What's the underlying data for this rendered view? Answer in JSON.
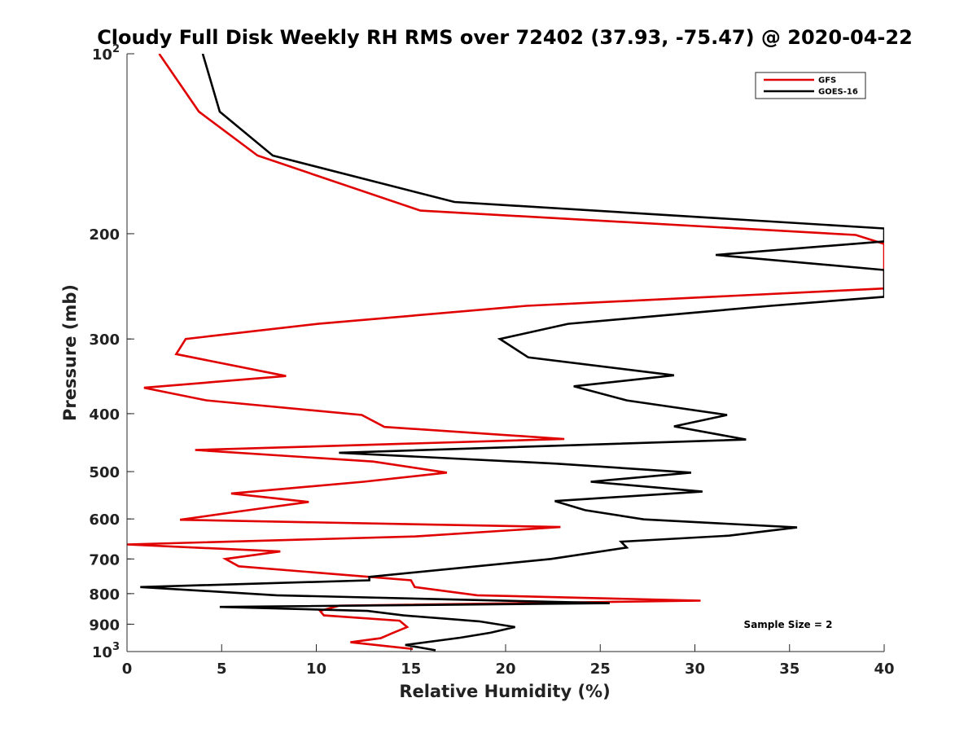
{
  "chart_data": {
    "type": "line",
    "title": "Cloudy Full Disk Weekly RH RMS over 72402 (37.93, -75.47) @ 2020-04-22",
    "xlabel": "Relative Humidity (%)",
    "ylabel": "Pressure (mb)",
    "xlim": [
      0,
      40
    ],
    "ylim": [
      100,
      1000
    ],
    "yscale": "log",
    "y_reversed": true,
    "x_ticks": [
      "0",
      "5",
      "10",
      "15",
      "20",
      "25",
      "30",
      "35",
      "40"
    ],
    "y_ticks": [
      {
        "value": 100,
        "base": "10",
        "exp": "2"
      },
      {
        "value": 200,
        "label": "200"
      },
      {
        "value": 300,
        "label": "300"
      },
      {
        "value": 400,
        "label": "400"
      },
      {
        "value": 500,
        "label": "500"
      },
      {
        "value": 600,
        "label": "600"
      },
      {
        "value": 700,
        "label": "700"
      },
      {
        "value": 800,
        "label": "800"
      },
      {
        "value": 900,
        "label": "900"
      },
      {
        "value": 1000,
        "base": "10",
        "exp": "3"
      }
    ],
    "grid": false,
    "legend_position": "top-right",
    "annotation": "Sample Size = 2",
    "series": [
      {
        "name": "GFS",
        "color": "#e00000",
        "points": [
          [
            1.7,
            100
          ],
          [
            3.8,
            125
          ],
          [
            6.9,
            148
          ],
          [
            15.5,
            183
          ],
          [
            38.5,
            201
          ],
          [
            40,
            208
          ],
          [
            40,
            247
          ],
          [
            21.1,
            264
          ],
          [
            10.1,
            283
          ],
          [
            3.1,
            300
          ],
          [
            2.6,
            318
          ],
          [
            8.4,
            346
          ],
          [
            0.9,
            362
          ],
          [
            4.2,
            380
          ],
          [
            12.4,
            402
          ],
          [
            13.6,
            421
          ],
          [
            23.1,
            441
          ],
          [
            3.6,
            460
          ],
          [
            13.0,
            481
          ],
          [
            16.9,
            502
          ],
          [
            12.5,
            520
          ],
          [
            5.5,
            544
          ],
          [
            9.6,
            562
          ],
          [
            5.9,
            583
          ],
          [
            2.8,
            602
          ],
          [
            22.9,
            619
          ],
          [
            15.2,
            642
          ],
          [
            0,
            662
          ],
          [
            8.1,
            680
          ],
          [
            5.2,
            700
          ],
          [
            5.9,
            720
          ],
          [
            12.8,
            750
          ],
          [
            15.0,
            760
          ],
          [
            15.2,
            780
          ],
          [
            18.5,
            805
          ],
          [
            30.3,
            822
          ],
          [
            11.2,
            838
          ],
          [
            10.2,
            855
          ],
          [
            10.4,
            870
          ],
          [
            14.4,
            888
          ],
          [
            14.8,
            910
          ],
          [
            14.0,
            932
          ],
          [
            13.4,
            950
          ],
          [
            11.8,
            965
          ],
          [
            15.1,
            990
          ]
        ]
      },
      {
        "name": "GOES-16",
        "color": "#000000",
        "points": [
          [
            4.0,
            100
          ],
          [
            4.9,
            125
          ],
          [
            7.7,
            148
          ],
          [
            17.3,
            177
          ],
          [
            40,
            196
          ],
          [
            40,
            206
          ],
          [
            31.1,
            217
          ],
          [
            40,
            230
          ],
          [
            40,
            255
          ],
          [
            34.0,
            264
          ],
          [
            23.3,
            283
          ],
          [
            19.7,
            300
          ],
          [
            21.2,
            322
          ],
          [
            28.9,
            345
          ],
          [
            23.6,
            360
          ],
          [
            26.4,
            380
          ],
          [
            31.7,
            402
          ],
          [
            28.9,
            420
          ],
          [
            32.7,
            442
          ],
          [
            11.2,
            465
          ],
          [
            22.7,
            485
          ],
          [
            29.8,
            502
          ],
          [
            24.5,
            520
          ],
          [
            30.4,
            540
          ],
          [
            22.6,
            560
          ],
          [
            24.2,
            580
          ],
          [
            27.3,
            601
          ],
          [
            35.4,
            620
          ],
          [
            31.8,
            640
          ],
          [
            26.1,
            655
          ],
          [
            26.4,
            670
          ],
          [
            22.4,
            700
          ],
          [
            12.8,
            750
          ],
          [
            12.8,
            760
          ],
          [
            0.7,
            780
          ],
          [
            7.9,
            805
          ],
          [
            25.5,
            830
          ],
          [
            4.9,
            842
          ],
          [
            12.7,
            855
          ],
          [
            14.6,
            870
          ],
          [
            18.6,
            890
          ],
          [
            20.5,
            910
          ],
          [
            19.2,
            930
          ],
          [
            17.6,
            948
          ],
          [
            14.7,
            975
          ],
          [
            16.3,
            995
          ]
        ]
      }
    ]
  }
}
